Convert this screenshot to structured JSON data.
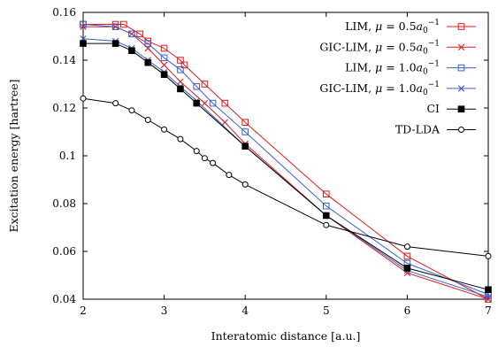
{
  "chart_data": {
    "type": "line",
    "title": "",
    "xlabel": "Interatomic distance [a.u.]",
    "ylabel": "Excitation energy [hartree]",
    "xlim": [
      2,
      7
    ],
    "ylim": [
      0.04,
      0.16
    ],
    "xticks": [
      2,
      3,
      4,
      5,
      6,
      7
    ],
    "yticks": [
      0.04,
      0.06,
      0.08,
      0.1,
      0.12,
      0.14,
      0.16
    ],
    "xtick_labels": [
      "2",
      "3",
      "4",
      "5",
      "6",
      "7"
    ],
    "ytick_labels": [
      "0.04",
      "0.06",
      "0.08",
      "0.1",
      "0.12",
      "0.14",
      "0.16"
    ],
    "grid": false,
    "legend_position": "top-right",
    "series": [
      {
        "name": "LIM, μ = 0.5a0⁻¹",
        "name_parts": [
          "LIM, ",
          "μ",
          " = 0.5",
          "a",
          "0",
          "−1"
        ],
        "color": "#e41a1c",
        "marker": "open-square",
        "x": [
          2.0,
          2.4,
          2.5,
          2.7,
          2.8,
          3.0,
          3.2,
          3.25,
          3.5,
          3.75,
          4.0,
          5.0,
          6.0,
          7.0
        ],
        "y": [
          0.155,
          0.155,
          0.155,
          0.151,
          0.148,
          0.145,
          0.14,
          0.138,
          0.13,
          0.122,
          0.114,
          0.084,
          0.058,
          0.04
        ]
      },
      {
        "name": "GIC-LIM, μ = 0.5a0⁻¹",
        "name_parts": [
          "GIC-LIM, ",
          "μ",
          " = 0.5",
          "a",
          "0",
          "−1"
        ],
        "color": "#e41a1c",
        "marker": "cross",
        "x": [
          2.0,
          2.4,
          2.6,
          2.8,
          3.0,
          3.2,
          3.5,
          3.75,
          4.0,
          5.0,
          6.0,
          7.0
        ],
        "y": [
          0.154,
          0.154,
          0.151,
          0.145,
          0.138,
          0.131,
          0.122,
          0.114,
          0.105,
          0.075,
          0.051,
          0.04
        ]
      },
      {
        "name": "LIM, μ = 1.0a0⁻¹",
        "name_parts": [
          "LIM, ",
          "μ",
          " = 1.0",
          "a",
          "0",
          "−1"
        ],
        "color": "#3a5fcd",
        "marker": "open-square",
        "x": [
          2.0,
          2.4,
          2.6,
          2.8,
          3.0,
          3.2,
          3.4,
          3.6,
          4.0,
          5.0,
          6.0,
          7.0
        ],
        "y": [
          0.155,
          0.154,
          0.151,
          0.147,
          0.141,
          0.136,
          0.129,
          0.122,
          0.11,
          0.079,
          0.055,
          0.042
        ]
      },
      {
        "name": "GIC-LIM, μ = 1.0a0⁻¹",
        "name_parts": [
          "GIC-LIM, ",
          "μ",
          " = 1.0",
          "a",
          "0",
          "−1"
        ],
        "color": "#3a5fcd",
        "marker": "cross",
        "x": [
          2.0,
          2.4,
          2.6,
          2.8,
          3.0,
          3.2,
          3.4,
          4.0,
          5.0,
          6.0,
          7.0
        ],
        "y": [
          0.149,
          0.148,
          0.145,
          0.14,
          0.135,
          0.129,
          0.123,
          0.104,
          0.075,
          0.052,
          0.041
        ]
      },
      {
        "name": "CI",
        "name_parts": [
          "CI"
        ],
        "color": "#000000",
        "marker": "filled-square",
        "x": [
          2.0,
          2.4,
          2.6,
          2.8,
          3.0,
          3.2,
          3.4,
          4.0,
          5.0,
          6.0,
          7.0
        ],
        "y": [
          0.147,
          0.147,
          0.144,
          0.139,
          0.134,
          0.128,
          0.122,
          0.104,
          0.075,
          0.053,
          0.044
        ]
      },
      {
        "name": "TD-LDA",
        "name_parts": [
          "TD-LDA"
        ],
        "color": "#000000",
        "marker": "open-circle",
        "x": [
          2.0,
          2.4,
          2.6,
          2.8,
          3.0,
          3.2,
          3.4,
          3.5,
          3.6,
          3.8,
          4.0,
          5.0,
          6.0,
          7.0
        ],
        "y": [
          0.124,
          0.122,
          0.119,
          0.115,
          0.111,
          0.107,
          0.102,
          0.099,
          0.097,
          0.092,
          0.088,
          0.071,
          0.062,
          0.058
        ]
      }
    ]
  }
}
